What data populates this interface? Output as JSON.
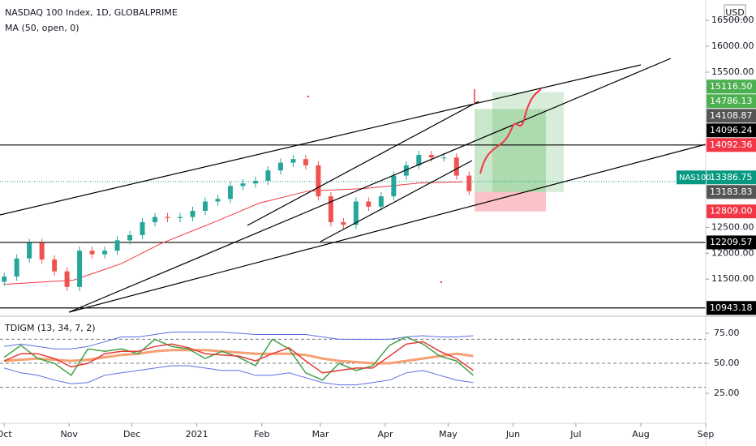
{
  "chart_data": [
    {
      "type": "candlestick",
      "title": "NASDAQ 100 Index, 1D, GLOBALPRIME",
      "indicator": "MA (50, open, 0)",
      "currency": "USD",
      "up_color": "#26a69a",
      "down_color": "#ef5350",
      "x": [
        0,
        6,
        12,
        18,
        24,
        30,
        36,
        42,
        48,
        54,
        60,
        66,
        72,
        78,
        84,
        90,
        96,
        102,
        108,
        114,
        120,
        126,
        132,
        138,
        144,
        150,
        156,
        162,
        168,
        174,
        180,
        186,
        192,
        198,
        204,
        210,
        216,
        222
      ],
      "open": [
        11450,
        11550,
        11900,
        12200,
        11880,
        11650,
        11350,
        12050,
        11980,
        12050,
        12250,
        12350,
        12600,
        12700,
        12680,
        12700,
        12820,
        13000,
        13050,
        13300,
        13350,
        13400,
        13600,
        13750,
        13820,
        13700,
        13100,
        12600,
        12550,
        13000,
        12900,
        13100,
        13500,
        13700,
        13900,
        13850,
        13850,
        13500
      ],
      "high": [
        11630,
        11980,
        12280,
        12280,
        11960,
        11730,
        12130,
        12130,
        12130,
        12330,
        12430,
        12680,
        12780,
        12780,
        12780,
        12900,
        13080,
        13130,
        13380,
        13430,
        13480,
        13680,
        13830,
        13900,
        13900,
        13780,
        13180,
        12680,
        13080,
        13080,
        13180,
        13580,
        13780,
        13980,
        13980,
        13930,
        13930,
        13580
      ],
      "low": [
        11370,
        11470,
        11820,
        11800,
        11570,
        11270,
        11270,
        11900,
        11900,
        11970,
        12170,
        12270,
        12520,
        12600,
        12600,
        12620,
        12740,
        12920,
        12970,
        13220,
        13270,
        13320,
        13520,
        13670,
        13620,
        13020,
        12520,
        12470,
        12470,
        12820,
        12820,
        13020,
        13420,
        13620,
        13770,
        13770,
        13420,
        13120
      ],
      "close": [
        11550,
        11900,
        12200,
        11880,
        11650,
        11350,
        12050,
        11980,
        12050,
        12250,
        12350,
        12600,
        12700,
        12680,
        12700,
        12820,
        13000,
        13050,
        13300,
        13350,
        13400,
        13600,
        13750,
        13820,
        13700,
        13100,
        12600,
        12550,
        13000,
        12900,
        13100,
        13500,
        13700,
        13900,
        13850,
        13850,
        13500,
        13200
      ],
      "ma": {
        "color": "#f23645",
        "x": [
          0,
          33,
          56,
          75,
          99,
          122,
          145,
          172,
          199,
          219
        ],
        "values": [
          11400,
          11480,
          11800,
          12190,
          12580,
          12970,
          13200,
          13250,
          13360,
          13380
        ]
      },
      "price_labels": [
        {
          "value": 15116.5,
          "label": "15116.50",
          "color": "#4caf50",
          "kind": "target"
        },
        {
          "value": 14786.13,
          "label": "14786.13",
          "color": "#4caf50",
          "kind": "target"
        },
        {
          "value": 14108.87,
          "label": "14108.87",
          "color": "#555555",
          "kind": "other"
        },
        {
          "value": 14096.24,
          "label": "14096.24",
          "color": "#000000",
          "kind": "other"
        },
        {
          "value": 14092.36,
          "label": "14092.36",
          "color": "#f23645",
          "kind": "hline"
        },
        {
          "value": 13386.75,
          "label": "13386.75",
          "color": "#089981",
          "kind": "last",
          "name": "NAS100"
        },
        {
          "value": 13183.83,
          "label": "13183.83",
          "color": "#555555",
          "kind": "entry"
        },
        {
          "value": 12809,
          "label": "12809.00",
          "color": "#f23645",
          "kind": "stop"
        },
        {
          "value": 12209.57,
          "label": "12209.57",
          "color": "#000000",
          "kind": "hline"
        },
        {
          "value": 10943.18,
          "label": "10943.18",
          "color": "#000000",
          "kind": "hline"
        }
      ],
      "xlim": [
        -2,
        335
      ],
      "xticks": [
        {
          "value": 0,
          "label": "Oct"
        },
        {
          "value": 31,
          "label": "Nov"
        },
        {
          "value": 61,
          "label": "Dec"
        },
        {
          "value": 92,
          "label": "2021"
        },
        {
          "value": 123,
          "label": "Feb"
        },
        {
          "value": 151,
          "label": "Mar"
        },
        {
          "value": 182,
          "label": "Apr"
        },
        {
          "value": 212,
          "label": "May"
        },
        {
          "value": 243,
          "label": "Jun"
        },
        {
          "value": 273,
          "label": "Jul"
        },
        {
          "value": 304,
          "label": "Aug"
        },
        {
          "value": 335,
          "label": "Sep"
        }
      ],
      "ylim": [
        10861,
        16894
      ],
      "yticks": [
        {
          "value": 11500,
          "label": "11500.00"
        },
        {
          "value": 12000,
          "label": "12000.00"
        },
        {
          "value": 12500,
          "label": "12500.00"
        },
        {
          "value": 15500,
          "label": "15500.00"
        },
        {
          "value": 16000,
          "label": "16000.00"
        },
        {
          "value": 16500,
          "label": "16500.00"
        }
      ]
    },
    {
      "type": "line",
      "title": "TDIGM (13, 34, 7, 2)",
      "xlim": [
        -2,
        335
      ],
      "x": [
        0,
        8,
        16,
        24,
        32,
        40,
        48,
        56,
        64,
        72,
        80,
        88,
        96,
        104,
        112,
        120,
        128,
        136,
        144,
        152,
        160,
        168,
        176,
        184,
        192,
        200,
        208,
        216,
        224
      ],
      "series": [
        {
          "color": "#5b6ee1",
          "width": 1,
          "values": [
            64,
            66,
            64,
            62,
            62,
            64,
            68,
            72,
            72,
            74,
            76,
            76,
            76,
            76,
            75,
            74,
            74,
            74,
            74,
            72,
            70,
            70,
            70,
            70,
            72,
            73,
            72,
            72,
            73
          ]
        },
        {
          "color": "#5b6ee1",
          "width": 1,
          "values": [
            46,
            42,
            40,
            36,
            33,
            34,
            40,
            42,
            44,
            46,
            48,
            48,
            46,
            44,
            44,
            40,
            40,
            42,
            38,
            34,
            32,
            32,
            34,
            36,
            42,
            44,
            40,
            36,
            34
          ]
        },
        {
          "color": "#f7a072",
          "width": 3,
          "values": [
            52,
            53,
            54,
            53,
            52,
            53,
            55,
            57,
            58,
            60,
            61,
            61,
            61,
            60,
            59,
            58,
            58,
            58,
            57,
            54,
            52,
            51,
            50,
            50,
            52,
            54,
            56,
            58,
            56
          ]
        },
        {
          "color": "#43a047",
          "width": 1.5,
          "values": [
            55,
            65,
            54,
            50,
            40,
            62,
            60,
            62,
            58,
            70,
            64,
            62,
            54,
            60,
            55,
            48,
            70,
            62,
            42,
            36,
            50,
            44,
            48,
            65,
            72,
            66,
            56,
            52,
            40
          ]
        },
        {
          "color": "#e53935",
          "width": 1.5,
          "values": [
            52,
            58,
            58,
            54,
            47,
            50,
            58,
            60,
            60,
            64,
            66,
            63,
            58,
            57,
            56,
            52,
            58,
            63,
            52,
            42,
            44,
            46,
            46,
            56,
            66,
            68,
            60,
            54,
            44
          ]
        }
      ],
      "levels": [
        70,
        50,
        30
      ],
      "ylim": [
        0,
        86.5
      ],
      "yticks": [
        {
          "value": 75,
          "label": "75.00"
        },
        {
          "value": 50,
          "label": "50.00"
        },
        {
          "value": 25,
          "label": "25.00"
        }
      ]
    }
  ]
}
